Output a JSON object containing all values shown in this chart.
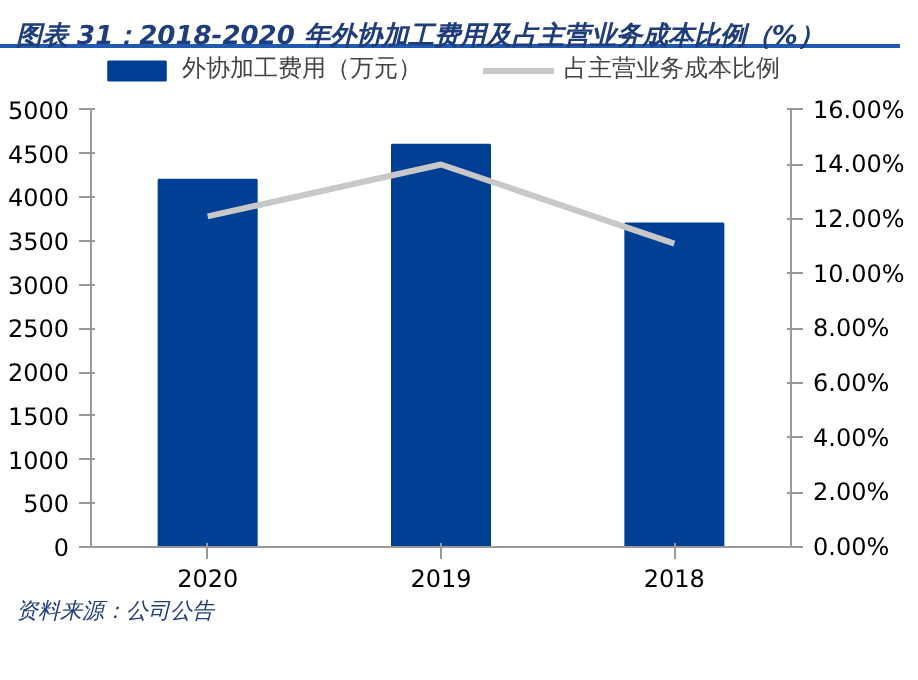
{
  "chart_data": {
    "type": "bar",
    "title": "图表 31：2018-2020 年外协加工费用及占主营业务成本比例（%）",
    "categories": [
      "2020",
      "2019",
      "2018"
    ],
    "series": [
      {
        "name": "外协加工费用（万元）",
        "color": "#003f94",
        "values": [
          4200,
          4600,
          3700
        ]
      },
      {
        "name": "占主营业务成本比例",
        "type": "line",
        "axis": "y2",
        "color": "#c8c8c8",
        "values": [
          12.1,
          14.0,
          11.1
        ]
      }
    ],
    "ylim": [
      0,
      5000
    ],
    "yticks": [
      0,
      500,
      1000,
      1500,
      2000,
      2500,
      3000,
      3500,
      4000,
      4500,
      5000
    ],
    "y2lim": [
      0,
      16
    ],
    "y2ticks": [
      {
        "value": 0,
        "label": "0.00%"
      },
      {
        "value": 2,
        "label": "2.00%"
      },
      {
        "value": 4,
        "label": "4.00%"
      },
      {
        "value": 6,
        "label": "6.00%"
      },
      {
        "value": 8,
        "label": "8.00%"
      },
      {
        "value": 10,
        "label": "10.00%"
      },
      {
        "value": 12,
        "label": "12.00%"
      },
      {
        "value": 14,
        "label": "14.00%"
      },
      {
        "value": 16,
        "label": "16.00%"
      }
    ],
    "legend": "top",
    "grid": false,
    "annotations": [
      "资料来源：公司公告"
    ]
  }
}
